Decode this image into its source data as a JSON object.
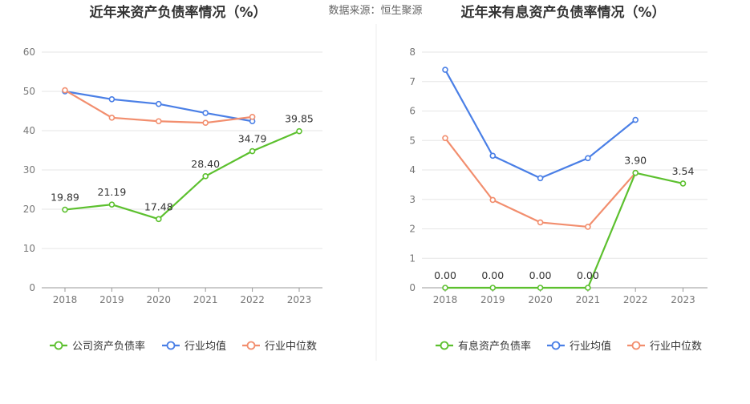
{
  "source_text": "数据来源：恒生聚源",
  "colors": {
    "company": "#5cc02e",
    "avg": "#4a7fe6",
    "median": "#f28e6e",
    "grid": "#e6e6e6",
    "axis": "#999999"
  },
  "chart_data": [
    {
      "type": "line",
      "title": "近年来资产负债率情况（%）",
      "categories": [
        "2018",
        "2019",
        "2020",
        "2021",
        "2022",
        "2023"
      ],
      "ylim": [
        0,
        60
      ],
      "yticks": [
        0,
        10,
        20,
        30,
        40,
        50,
        60
      ],
      "ytick_labels": [
        "0",
        "10",
        "20",
        "30",
        "40",
        "50",
        "60"
      ],
      "grid": true,
      "legend_position": "bottom",
      "series": [
        {
          "name": "公司资产负债率",
          "key": "company",
          "values": [
            19.89,
            21.19,
            17.48,
            28.4,
            34.79,
            39.85
          ],
          "labels": [
            "19.89",
            "21.19",
            "17.48",
            "28.40",
            "34.79",
            "39.85"
          ]
        },
        {
          "name": "行业均值",
          "key": "avg",
          "values": [
            50.0,
            48.0,
            46.8,
            44.5,
            42.4,
            null
          ]
        },
        {
          "name": "行业中位数",
          "key": "median",
          "values": [
            50.3,
            43.3,
            42.4,
            42.0,
            43.5,
            null
          ]
        }
      ]
    },
    {
      "type": "line",
      "title": "近年来有息资产负债率情况（%）",
      "categories": [
        "2018",
        "2019",
        "2020",
        "2021",
        "2022",
        "2023"
      ],
      "ylim": [
        0,
        8
      ],
      "yticks": [
        0,
        1,
        2,
        3,
        4,
        5,
        6,
        7,
        8
      ],
      "ytick_labels": [
        "0",
        "1",
        "2",
        "3",
        "4",
        "5",
        "6",
        "7",
        "8"
      ],
      "grid": true,
      "legend_position": "bottom",
      "series": [
        {
          "name": "有息资产负债率",
          "key": "company",
          "values": [
            0.0,
            0.0,
            0.0,
            0.0,
            3.9,
            3.54
          ],
          "labels": [
            "0.00",
            "0.00",
            "0.00",
            "0.00",
            "3.90",
            "3.54"
          ]
        },
        {
          "name": "行业均值",
          "key": "avg",
          "values": [
            7.4,
            4.48,
            3.72,
            4.4,
            5.7,
            null
          ]
        },
        {
          "name": "行业中位数",
          "key": "median",
          "values": [
            5.08,
            2.98,
            2.22,
            2.07,
            3.9,
            null
          ]
        }
      ]
    }
  ]
}
